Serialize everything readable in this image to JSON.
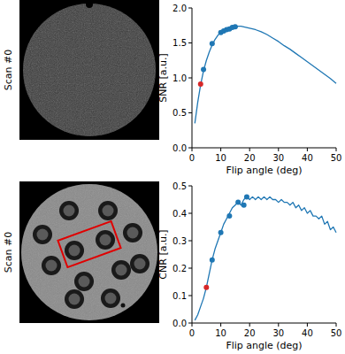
{
  "images": [
    {
      "label": "Scan #0"
    },
    {
      "label": "Scan #0"
    }
  ],
  "chart_data": [
    {
      "type": "line",
      "ylabel": "SNR [a.u.]",
      "xlabel": "Flip angle (deg)",
      "xlim": [
        0,
        50
      ],
      "ylim": [
        0,
        2
      ],
      "xticks": [
        0,
        10,
        20,
        30,
        40,
        50
      ],
      "yticks": [
        {
          "value": 0,
          "label": "0.0"
        },
        0.5,
        {
          "value": 1,
          "label": "1.0"
        },
        1.5,
        {
          "value": 2,
          "label": "2.0"
        }
      ],
      "series": [
        {
          "type": "line",
          "color": "#1f77b4",
          "x": [
            1,
            2,
            3,
            4,
            5,
            6,
            7,
            8,
            9,
            10,
            11,
            12,
            13,
            14,
            15,
            16,
            17,
            18,
            19,
            20,
            22,
            24,
            26,
            28,
            30,
            32,
            34,
            36,
            38,
            40,
            42,
            44,
            46,
            48,
            50
          ],
          "values": [
            0.35,
            0.65,
            0.9,
            1.1,
            1.25,
            1.37,
            1.47,
            1.55,
            1.61,
            1.65,
            1.68,
            1.7,
            1.72,
            1.73,
            1.73,
            1.74,
            1.74,
            1.73,
            1.72,
            1.71,
            1.69,
            1.66,
            1.62,
            1.57,
            1.52,
            1.46,
            1.41,
            1.35,
            1.29,
            1.23,
            1.17,
            1.11,
            1.05,
            0.99,
            0.92
          ]
        },
        {
          "type": "scatter",
          "color": "#1f77b4",
          "marker": "circle",
          "x": [
            4,
            7,
            10,
            11,
            12,
            13,
            14,
            15
          ],
          "values": [
            1.12,
            1.49,
            1.65,
            1.67,
            1.69,
            1.7,
            1.72,
            1.73
          ]
        },
        {
          "type": "scatter",
          "color": "#d62728",
          "marker": "circle",
          "x": [
            3
          ],
          "values": [
            0.91
          ]
        }
      ]
    },
    {
      "type": "line",
      "ylabel": "CNR [a.u.]",
      "xlabel": "Flip angle (deg)",
      "xlim": [
        0,
        50
      ],
      "ylim": [
        0,
        0.5
      ],
      "xticks": [
        0,
        10,
        20,
        30,
        40,
        50
      ],
      "yticks": [
        {
          "value": 0,
          "label": "0.0"
        },
        0.1,
        0.2,
        0.3,
        0.4,
        0.5
      ],
      "series": [
        {
          "type": "line",
          "color": "#1f77b4",
          "x": [
            1,
            2,
            3,
            4,
            5,
            6,
            7,
            8,
            9,
            10,
            11,
            12,
            13,
            14,
            15,
            16,
            17,
            18,
            19,
            20,
            21,
            22,
            23,
            24,
            25,
            26,
            27,
            28,
            29,
            30,
            31,
            32,
            33,
            34,
            35,
            36,
            37,
            38,
            39,
            40,
            41,
            42,
            43,
            44,
            45,
            46,
            47,
            48,
            49,
            50
          ],
          "values": [
            0.01,
            0.03,
            0.06,
            0.09,
            0.13,
            0.18,
            0.23,
            0.27,
            0.3,
            0.33,
            0.36,
            0.38,
            0.4,
            0.42,
            0.43,
            0.44,
            0.43,
            0.45,
            0.46,
            0.45,
            0.46,
            0.45,
            0.46,
            0.45,
            0.46,
            0.45,
            0.46,
            0.45,
            0.45,
            0.44,
            0.45,
            0.44,
            0.44,
            0.43,
            0.44,
            0.42,
            0.43,
            0.41,
            0.42,
            0.4,
            0.41,
            0.39,
            0.39,
            0.38,
            0.39,
            0.36,
            0.37,
            0.34,
            0.35,
            0.33
          ]
        },
        {
          "type": "scatter",
          "color": "#1f77b4",
          "marker": "circle",
          "x": [
            7,
            10,
            13,
            16,
            18,
            19
          ],
          "values": [
            0.23,
            0.33,
            0.39,
            0.44,
            0.43,
            0.46
          ]
        },
        {
          "type": "scatter",
          "color": "#d62728",
          "marker": "circle",
          "x": [
            5
          ],
          "values": [
            0.13
          ]
        }
      ]
    }
  ]
}
